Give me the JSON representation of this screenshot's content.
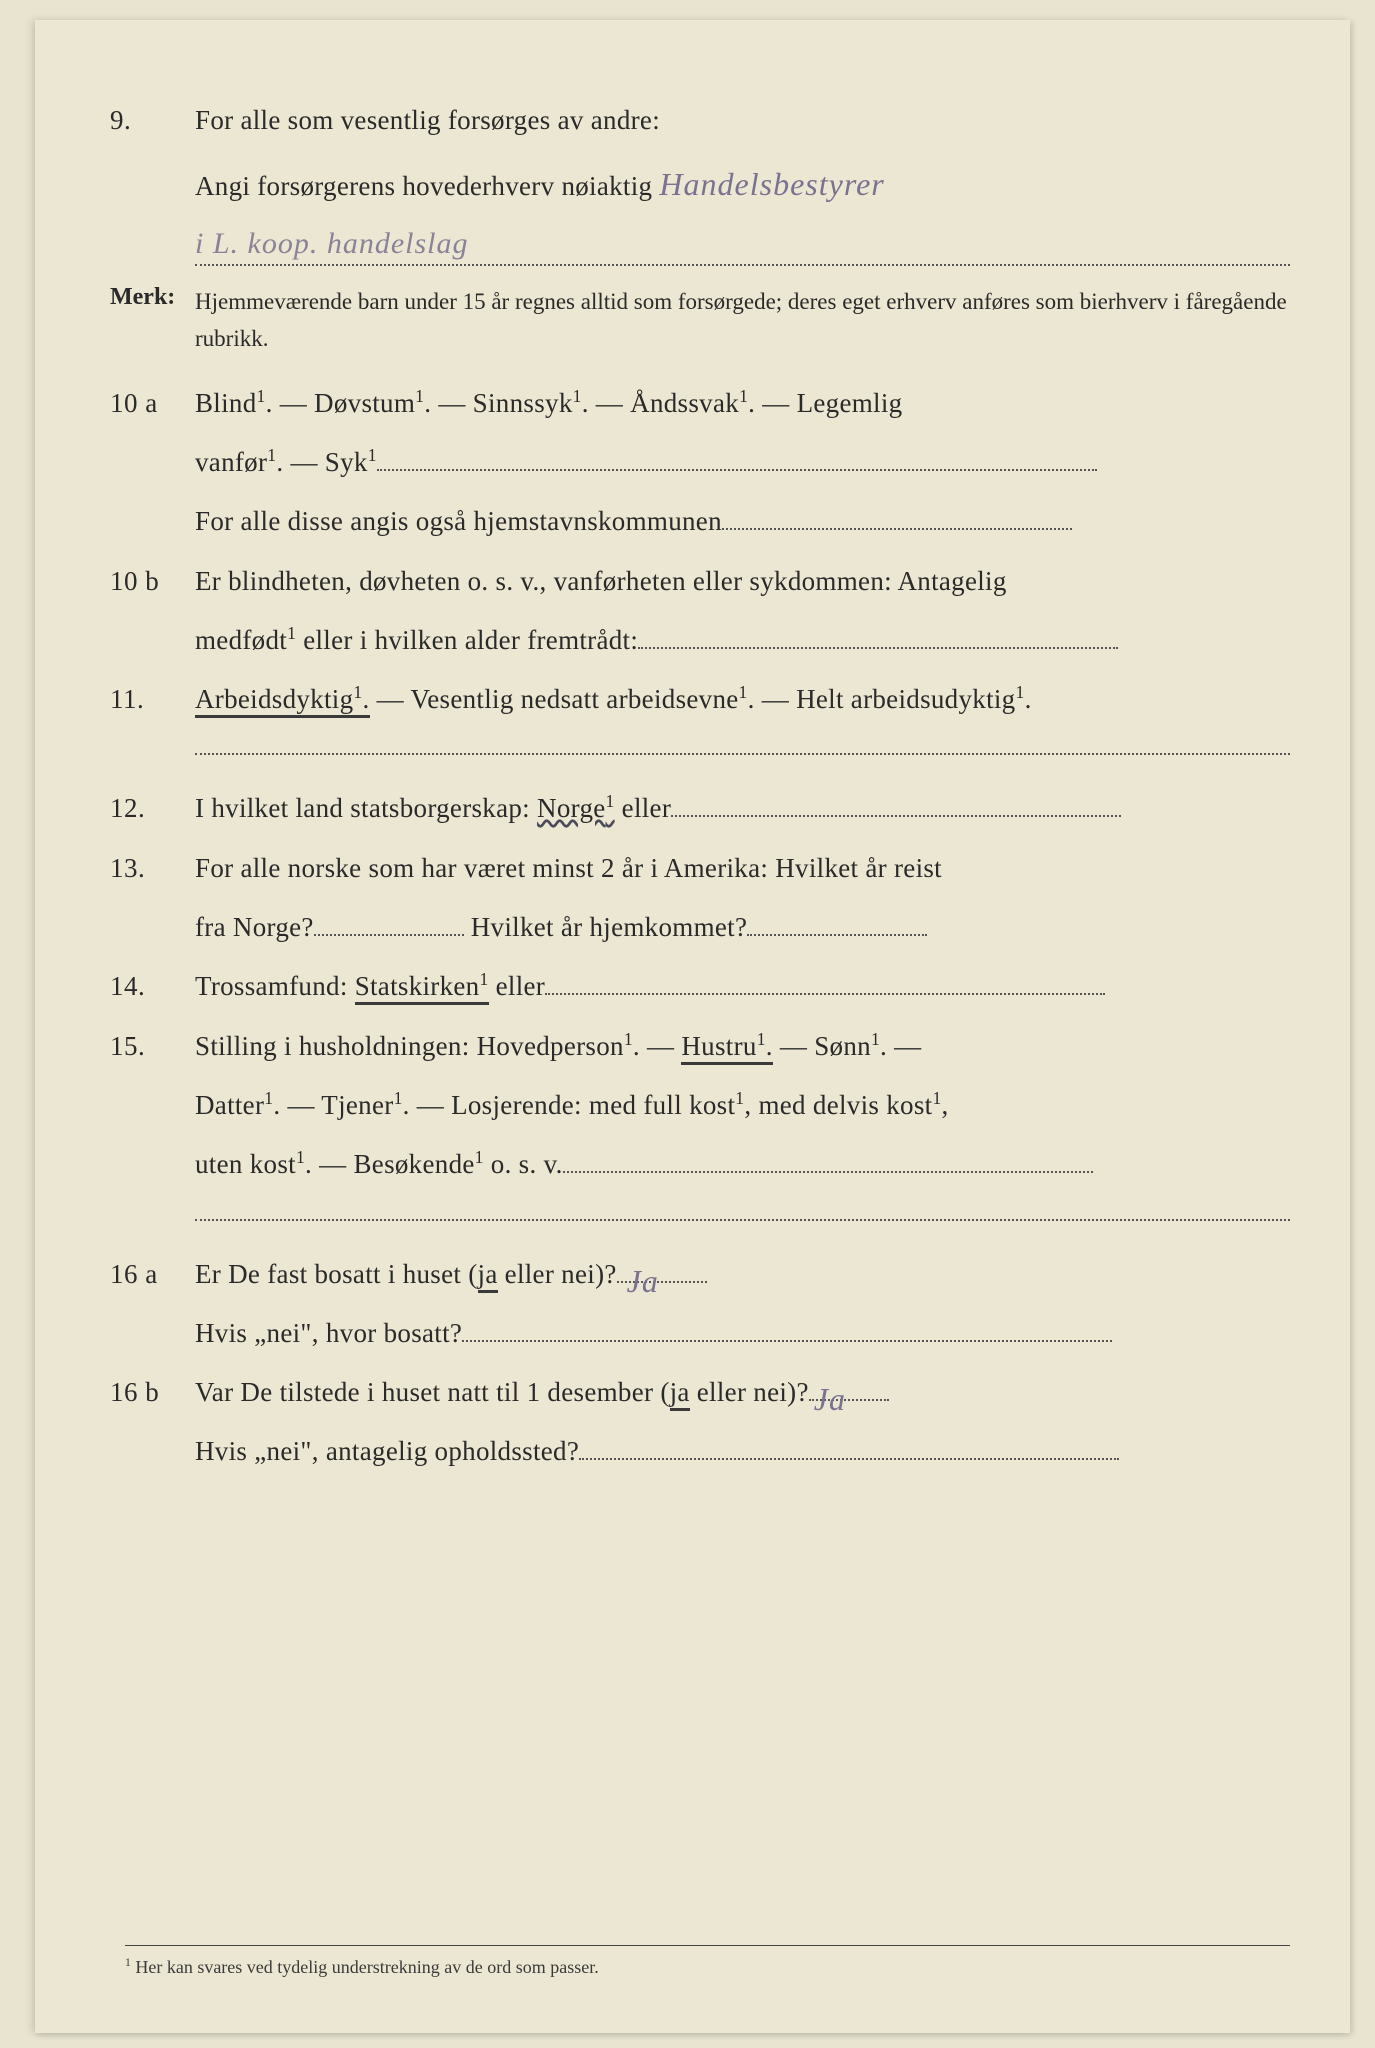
{
  "q9": {
    "num": "9.",
    "line1": "For alle som vesentlig forsørges av andre:",
    "line2_prefix": "Angi forsørgerens hovederhverv nøiaktig",
    "handwritten1": "Handelsbestyrer",
    "handwritten2": "i L. koop. handelslag"
  },
  "merk": {
    "label": "Merk:",
    "text": "Hjemmeværende barn under 15 år regnes alltid som forsørgede; deres eget erhverv anføres som bierhverv i fåregående rubrikk."
  },
  "q10a": {
    "num": "10 a",
    "line1": "Blind¹.   —   Døvstum¹.   —   Sinnssyk¹.   —   Åndssvak¹.   —   Legemlig",
    "line2_prefix": "vanfør¹.  —  Syk¹",
    "line3": "For  alle  disse  angis  også  hjemstavnskommunen"
  },
  "q10b": {
    "num": "10 b",
    "line1": "Er blindheten, døvheten o. s. v., vanførheten eller sykdommen: Antagelig",
    "line2_prefix": "medfødt¹ eller i hvilken alder fremtrådt:"
  },
  "q11": {
    "num": "11.",
    "underlined": "Arbeidsdyktig¹.",
    "rest": " — Vesentlig nedsatt arbeidsevne¹. — Helt arbeidsudyktig¹."
  },
  "q12": {
    "num": "12.",
    "prefix": "I hvilket land statsborgerskap: ",
    "wavy": "Norge¹",
    "suffix": " eller"
  },
  "q13": {
    "num": "13.",
    "line1": "For alle norske som har været minst 2 år i Amerika:   Hvilket år reist",
    "line2a": "fra Norge?",
    "line2b": " Hvilket år hjemkommet?"
  },
  "q14": {
    "num": "14.",
    "prefix": "Trossamfund:  ",
    "underlined": "Statskirken¹",
    "suffix": " eller"
  },
  "q15": {
    "num": "15.",
    "line1a": "Stilling  i  husholdningen:   Hovedperson¹.  —  ",
    "line1_underlined": "Hustru¹.",
    "line1b": "  —  Sønn¹.  —",
    "line2": "Datter¹.  —  Tjener¹.  —  Losjerende:  med full kost¹, med delvis kost¹,",
    "line3": "uten kost¹. — Besøkende¹ o. s. v."
  },
  "q16a": {
    "num": "16 a",
    "line1_prefix": "Er De fast bosatt i huset (",
    "line1_underlined": "ja",
    "line1_suffix": " eller nei)?",
    "handwritten": "Ja",
    "line2": "Hvis „nei\", hvor bosatt?"
  },
  "q16b": {
    "num": "16 b",
    "line1_prefix": "Var De tilstede i huset natt til 1 desember (",
    "line1_underlined": "ja",
    "line1_suffix": " eller nei)?",
    "handwritten": "Ja",
    "line2": "Hvis „nei\", antagelig opholdssted?"
  },
  "footnote": {
    "sup": "1",
    "text": "  Her kan svares ved tydelig understrekning av de ord som passer."
  },
  "colors": {
    "page_bg": "#ece7d2",
    "body_bg": "#e8e4d0",
    "text": "#2a2a2a",
    "handwriting": "#7a7290"
  }
}
